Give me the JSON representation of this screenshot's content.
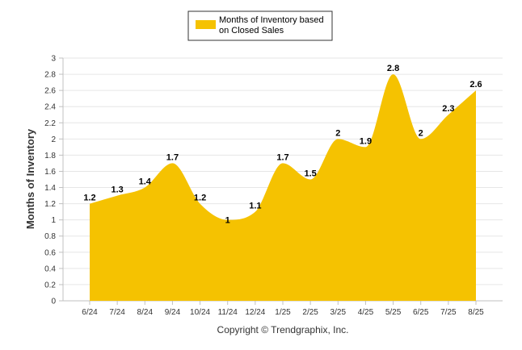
{
  "chart_data": {
    "type": "area",
    "categories": [
      "6/24",
      "7/24",
      "8/24",
      "9/24",
      "10/24",
      "11/24",
      "12/24",
      "1/25",
      "2/25",
      "3/25",
      "4/25",
      "5/25",
      "6/25",
      "7/25",
      "8/25"
    ],
    "series": [
      {
        "name": "Months of Inventory based on Closed Sales",
        "values": [
          1.2,
          1.3,
          1.4,
          1.7,
          1.2,
          1,
          1.1,
          1.7,
          1.5,
          2,
          1.9,
          2.8,
          2,
          2.3,
          2.6
        ],
        "color": "#F5C201"
      }
    ],
    "data_labels": [
      "1.2",
      "1.3",
      "1.4",
      "1.7",
      "1.2",
      "1",
      "1.1",
      "1.7",
      "1.5",
      "2",
      "1.9",
      "2.8",
      "2",
      "2.3",
      "2.6"
    ],
    "title": "",
    "xlabel": "",
    "ylabel": "Months of Inventory",
    "ylim": [
      0,
      3
    ],
    "yticks": [
      "0",
      "0.2",
      "0.4",
      "0.6",
      "0.8",
      "1",
      "1.2",
      "1.4",
      "1.6",
      "1.8",
      "2",
      "2.2",
      "2.4",
      "2.6",
      "2.8",
      "3"
    ],
    "grid": true,
    "legend_position": "top-center",
    "legend_lines": [
      "Months of Inventory based",
      "on Closed Sales"
    ],
    "credit": "Copyright © Trendgraphix, Inc."
  }
}
